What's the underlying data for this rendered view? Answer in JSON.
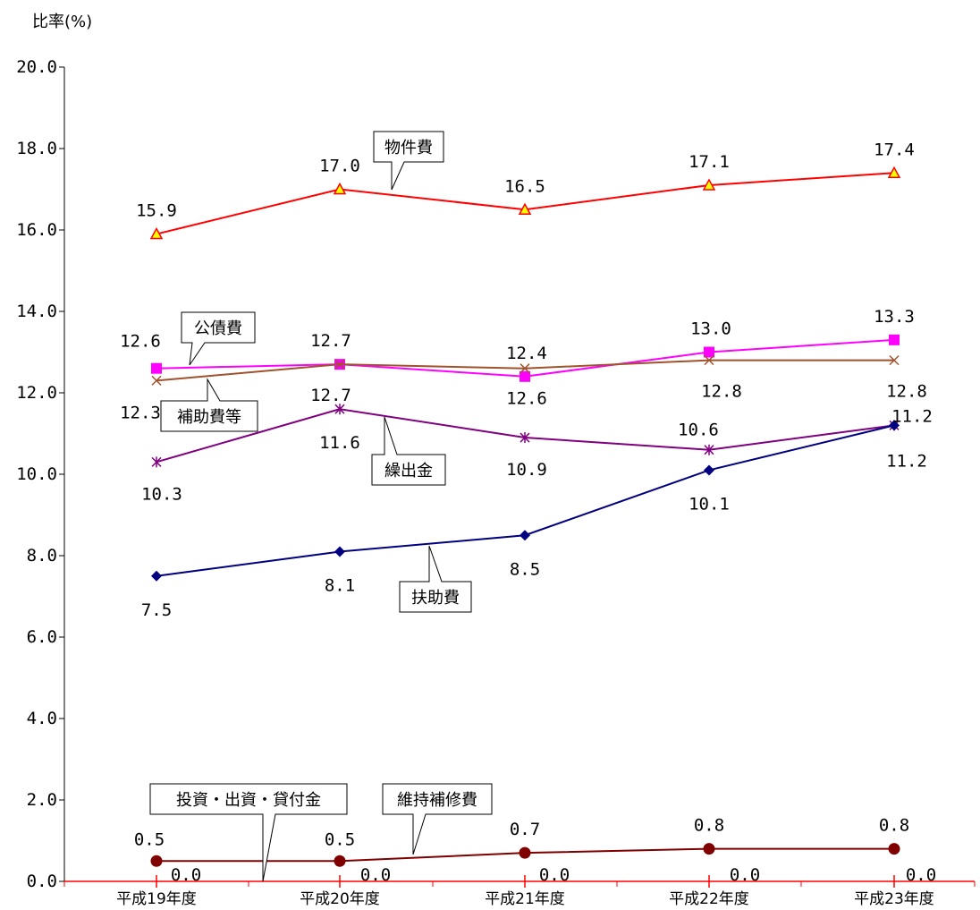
{
  "chart_data": {
    "type": "line",
    "ylabel": "比率(%)",
    "ylim": [
      0,
      20
    ],
    "yticks": [
      "0.0",
      "2.0",
      "4.0",
      "6.0",
      "8.0",
      "10.0",
      "12.0",
      "14.0",
      "16.0",
      "18.0",
      "20.0"
    ],
    "categories": [
      "平成19年度",
      "平成20年度",
      "平成21年度",
      "平成22年度",
      "平成23年度"
    ],
    "grid": false,
    "series": [
      {
        "name": "物件費",
        "values": [
          15.9,
          17.0,
          16.5,
          17.1,
          17.4
        ],
        "labels": [
          "15.9",
          "17.0",
          "16.5",
          "17.1",
          "17.4"
        ],
        "color": "#ff0000",
        "marker": "triangle",
        "marker_fill": "#ffff00"
      },
      {
        "name": "公債費",
        "values": [
          12.6,
          12.7,
          12.4,
          13.0,
          13.3
        ],
        "labels": [
          "12.6",
          "12.7",
          "12.4",
          "13.0",
          "13.3"
        ],
        "color": "#ff00ff",
        "marker": "square",
        "marker_fill": "#ff00ff"
      },
      {
        "name": "補助費等",
        "values": [
          12.3,
          12.7,
          12.6,
          12.8,
          12.8
        ],
        "labels": [
          "12.3",
          "12.7",
          "12.6",
          "12.8",
          "12.8"
        ],
        "color": "#a0522d",
        "marker": "x",
        "marker_fill": "#800000"
      },
      {
        "name": "繰出金",
        "values": [
          10.3,
          11.6,
          10.9,
          10.6,
          11.2
        ],
        "labels": [
          "10.3",
          "11.6",
          "10.9",
          "10.6",
          "11.2"
        ],
        "color": "#800080",
        "marker": "star",
        "marker_fill": "#800080"
      },
      {
        "name": "扶助費",
        "values": [
          7.5,
          8.1,
          8.5,
          10.1,
          11.2
        ],
        "labels": [
          "7.5",
          "8.1",
          "8.5",
          "10.1",
          "11.2"
        ],
        "color": "#000080",
        "marker": "diamond",
        "marker_fill": "#000080"
      },
      {
        "name": "維持補修費",
        "values": [
          0.5,
          0.5,
          0.7,
          0.8,
          0.8
        ],
        "labels": [
          "0.5",
          "0.5",
          "0.7",
          "0.8",
          "0.8"
        ],
        "color": "#800000",
        "marker": "circle",
        "marker_fill": "#800000"
      },
      {
        "name": "投資・出資・貸付金",
        "values": [
          0.0,
          0.0,
          0.0,
          0.0,
          0.0
        ],
        "labels": [
          "0.0",
          "0.0",
          "0.0",
          "0.0",
          "0.0"
        ],
        "color": "#ff0000",
        "marker": "plus",
        "marker_fill": "#ff0000"
      }
    ]
  }
}
